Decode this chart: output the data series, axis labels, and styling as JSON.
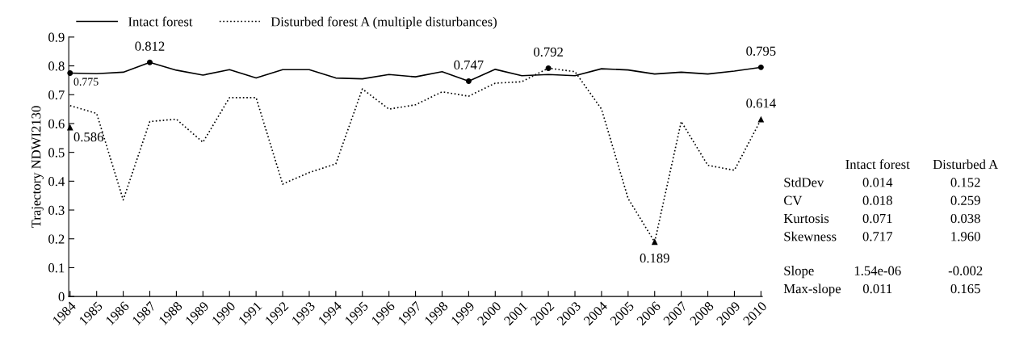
{
  "chart_data": {
    "type": "line",
    "ylabel": "Trajectory NDWI2130",
    "categories": [
      "1984",
      "1985",
      "1986",
      "1987",
      "1988",
      "1989",
      "1990",
      "1991",
      "1992",
      "1993",
      "1994",
      "1995",
      "1996",
      "1997",
      "1998",
      "1999",
      "2000",
      "2001",
      "2002",
      "2003",
      "2004",
      "2005",
      "2006",
      "2007",
      "2008",
      "2009",
      "2010"
    ],
    "series": [
      {
        "name": "Intact forest",
        "color": "#000000",
        "line_style": "solid",
        "values": [
          0.775,
          0.773,
          0.778,
          0.812,
          0.785,
          0.768,
          0.787,
          0.758,
          0.787,
          0.787,
          0.758,
          0.755,
          0.77,
          0.762,
          0.78,
          0.747,
          0.788,
          0.766,
          0.77,
          0.766,
          0.79,
          0.786,
          0.772,
          0.778,
          0.772,
          0.782,
          0.795
        ]
      },
      {
        "name": "Disturbed forest A (multiple disturbances)",
        "color": "#000000",
        "line_style": "dotted",
        "values": [
          0.662,
          0.635,
          0.335,
          0.607,
          0.615,
          0.535,
          0.69,
          0.69,
          0.39,
          0.43,
          0.46,
          0.72,
          0.65,
          0.665,
          0.71,
          0.695,
          0.74,
          0.745,
          0.792,
          0.78,
          0.65,
          0.34,
          0.189,
          0.607,
          0.455,
          0.438,
          0.614
        ]
      }
    ],
    "ylim": [
      0,
      0.9
    ],
    "yticks": [
      0,
      0.1,
      0.2,
      0.3,
      0.4,
      0.5,
      0.6,
      0.7,
      0.8,
      0.9
    ],
    "grid": false,
    "legend": "top left",
    "annotations": [
      {
        "text": "0.775",
        "x": "1984",
        "y": 0.775
      },
      {
        "text": "0.586",
        "x": "1984",
        "y": 0.586
      },
      {
        "text": "0.812",
        "x": "1987",
        "y": 0.812
      },
      {
        "text": "0.747",
        "x": "1999",
        "y": 0.747
      },
      {
        "text": "0.792",
        "x": "2002",
        "y": 0.792
      },
      {
        "text": "0.189",
        "x": "2006",
        "y": 0.189
      },
      {
        "text": "0.795",
        "x": "2010",
        "y": 0.795
      },
      {
        "text": "0.614",
        "x": "2010",
        "y": 0.614
      },
      "Intact forest",
      "Disturbed A",
      "StdDev",
      "0.014",
      "0.152",
      "CV",
      "0.018",
      "0.259",
      "Kurtosis",
      "0.071",
      "0.038",
      "Skewness",
      "0.717",
      "1.960",
      "Slope",
      "1.54e-06",
      "-0.002",
      "Max-slope",
      "0.011",
      "0.165"
    ]
  }
}
